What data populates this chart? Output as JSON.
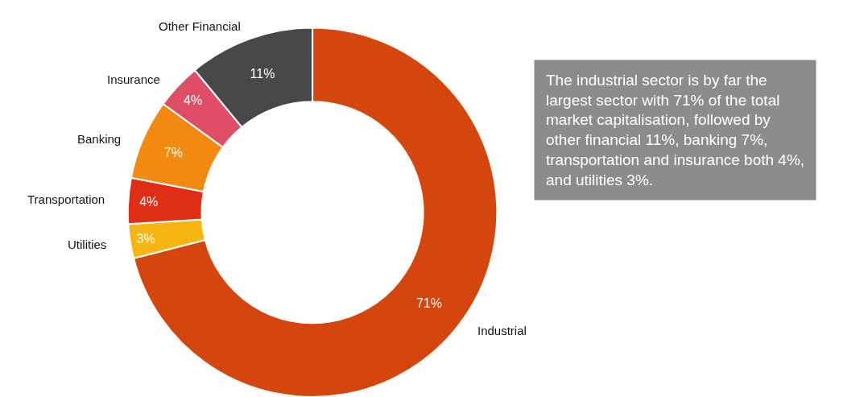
{
  "chart_data": {
    "type": "donut",
    "categories": [
      "Industrial",
      "Utilities",
      "Transportation",
      "Banking",
      "Insurance",
      "Other Financial"
    ],
    "values": [
      71,
      3,
      4,
      7,
      4,
      11
    ],
    "value_labels": [
      "71%",
      "3%",
      "4%",
      "7%",
      "4%",
      "11%"
    ],
    "colors": [
      "#d4460e",
      "#f7b512",
      "#e02e16",
      "#f28a12",
      "#df4d66",
      "#484848"
    ],
    "legend": false,
    "annotations": [
      "The industrial sector is by far the largest sector with 71% of the total market capitalisation, followed by other financial 11%, banking 7%, transportation and insurance both 4%, and utilities 3%."
    ]
  }
}
